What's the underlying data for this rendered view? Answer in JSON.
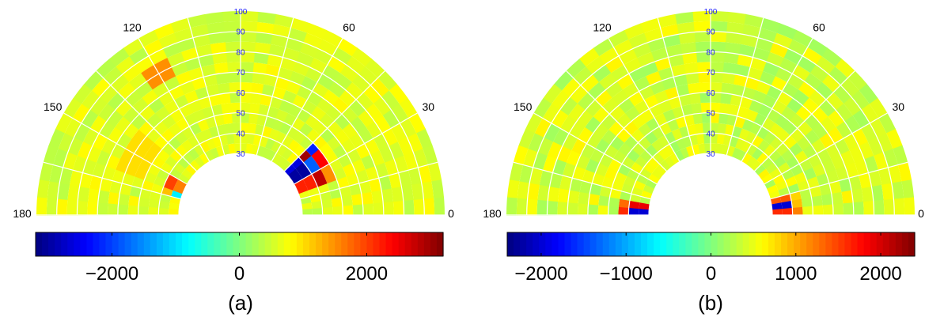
{
  "chart_data": [
    {
      "type": "heatmap",
      "projection": "polar-half",
      "panel_label": "(a)",
      "theta_ticks": [
        "0",
        "30",
        "60",
        "120",
        "150",
        "180"
      ],
      "radial_ticks": [
        "30",
        "40",
        "50",
        "60",
        "70",
        "80",
        "90",
        "100"
      ],
      "rlim": [
        30,
        100
      ],
      "theta_range": [
        0,
        180
      ],
      "grid": true,
      "colormap": "jet",
      "clim": [
        -3200,
        3200
      ],
      "colorbar_ticks": [
        "−2000",
        "0",
        "2000"
      ],
      "colorbar_tick_values": [
        -2000,
        0,
        2000
      ],
      "background_value": 600,
      "features": [
        {
          "theta": [
            20,
            45
          ],
          "r": [
            30,
            46
          ],
          "values": [
            [
              2200,
              -3000,
              -2600
            ],
            [
              2800,
              -1800,
              3000
            ],
            [
              1500,
              2400,
              -2200
            ]
          ]
        },
        {
          "theta": [
            115,
            125
          ],
          "r": [
            73,
            82
          ],
          "value": 1500
        },
        {
          "theta": [
            140,
            160
          ],
          "r": [
            50,
            62
          ],
          "value": 1000
        },
        {
          "theta": [
            150,
            165
          ],
          "r": [
            30,
            40
          ],
          "values": [
            [
              1600,
              -900
            ],
            [
              2000,
              1200
            ]
          ]
        }
      ]
    },
    {
      "type": "heatmap",
      "projection": "polar-half",
      "panel_label": "(b)",
      "theta_ticks": [
        "0",
        "30",
        "60",
        "120",
        "150",
        "180"
      ],
      "radial_ticks": [
        "30",
        "40",
        "50",
        "60",
        "70",
        "80",
        "90",
        "100"
      ],
      "rlim": [
        30,
        100
      ],
      "theta_range": [
        0,
        180
      ],
      "grid": true,
      "colormap": "jet",
      "clim": [
        -2400,
        2400
      ],
      "colorbar_ticks": [
        "−2000",
        "−1000",
        "0",
        "1000",
        "2000"
      ],
      "colorbar_tick_values": [
        -2000,
        -1000,
        0,
        1000,
        2000
      ],
      "background_value": 400,
      "features": [
        {
          "theta": [
            0,
            12
          ],
          "r": [
            30,
            44
          ],
          "values": [
            [
              1600,
              -2000,
              -2300,
              1400
            ],
            [
              1200,
              900,
              1000,
              800
            ]
          ]
        },
        {
          "theta": [
            168,
            180
          ],
          "r": [
            30,
            44
          ],
          "values": [
            [
              1900,
              1500,
              -2000,
              1700
            ],
            [
              1300,
              1200,
              1600,
              900
            ]
          ]
        }
      ]
    }
  ]
}
